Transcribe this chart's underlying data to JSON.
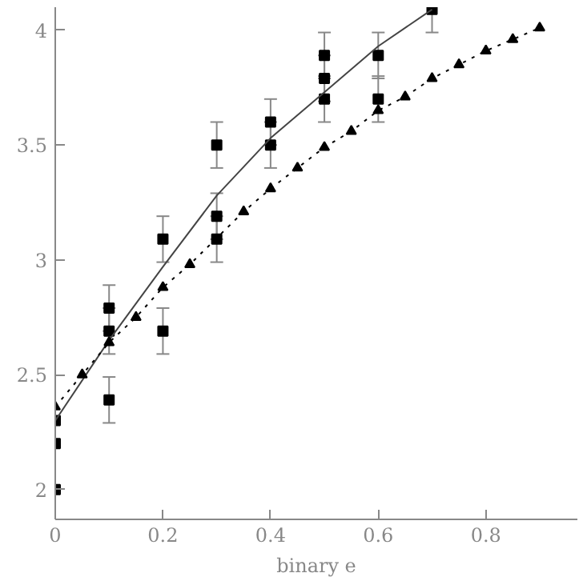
{
  "chart_data": {
    "type": "scatter",
    "xlabel": "binary e",
    "xlim": [
      0,
      0.97
    ],
    "ylim": [
      1.87,
      4.1
    ],
    "xticks": [
      0,
      0.2,
      0.4,
      0.6,
      0.8
    ],
    "yticks": [
      2,
      2.5,
      3,
      3.5,
      4
    ],
    "grid": false,
    "series": [
      {
        "marker": "square",
        "color": "#000000",
        "x": [
          0,
          0,
          0,
          0.1,
          0.1,
          0.1,
          0.2,
          0.2,
          0.3,
          0.3,
          0.3,
          0.4,
          0.4,
          0.5,
          0.5,
          0.5,
          0.6,
          0.6,
          0.7
        ],
        "values": [
          2.0,
          2.2,
          2.3,
          2.79,
          2.69,
          2.39,
          3.09,
          2.69,
          3.5,
          3.19,
          3.09,
          3.6,
          3.5,
          3.89,
          3.79,
          3.7,
          3.89,
          3.7,
          4.09
        ],
        "errors": [
          null,
          null,
          null,
          0.1,
          0.1,
          0.1,
          0.1,
          0.1,
          0.1,
          0.1,
          0.1,
          0.1,
          0.1,
          0.1,
          0.1,
          0.1,
          0.1,
          0.1,
          0.1
        ]
      },
      {
        "type": "line",
        "marker": "none",
        "line_style": "solid",
        "color": "#444444",
        "x": [
          0,
          0.1,
          0.2,
          0.3,
          0.4,
          0.5,
          0.6,
          0.7
        ],
        "values": [
          2.3,
          2.65,
          2.97,
          3.28,
          3.53,
          3.73,
          3.93,
          4.09
        ]
      },
      {
        "type": "line",
        "marker": "triangle",
        "line_style": "dotted",
        "color": "#000000",
        "x": [
          0,
          0.05,
          0.1,
          0.15,
          0.2,
          0.25,
          0.3,
          0.35,
          0.4,
          0.45,
          0.5,
          0.55,
          0.6,
          0.65,
          0.7,
          0.75,
          0.8,
          0.85,
          0.9
        ],
        "values": [
          2.36,
          2.5,
          2.64,
          2.75,
          2.88,
          2.98,
          null,
          3.21,
          3.31,
          3.4,
          3.49,
          3.56,
          3.65,
          3.71,
          3.79,
          3.85,
          3.91,
          3.96,
          4.01
        ]
      }
    ]
  }
}
